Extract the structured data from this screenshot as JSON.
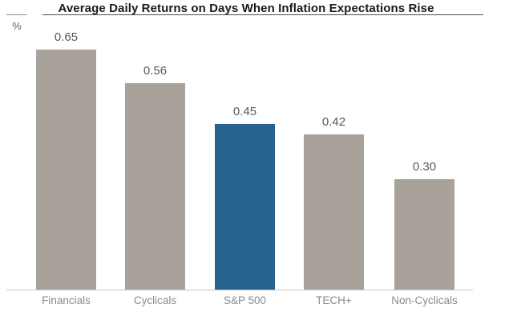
{
  "chart_data": {
    "type": "bar",
    "title": "Average Daily Returns on Days When Inflation Expectations Rise",
    "categories": [
      "Financials",
      "Cyclicals",
      "S&P 500",
      "TECH+",
      "Non-Cyclicals"
    ],
    "values": [
      0.65,
      0.56,
      0.45,
      0.42,
      0.3
    ],
    "value_labels": [
      "0.65",
      "0.56",
      "0.45",
      "0.42",
      "0.30"
    ],
    "xlabel": "",
    "ylabel": "%",
    "ylim": [
      0,
      0.72
    ],
    "grid": false,
    "legend": "none",
    "highlight_category": "S&P 500",
    "bar_colors": [
      "#a8a29b",
      "#a8a29b",
      "#27618e",
      "#a8a29b",
      "#a8a29b"
    ]
  },
  "colors": {
    "bar_gray": "#a8a29b",
    "bar_blue": "#27618e",
    "axis_line": "#c8c8c8",
    "title_text": "#1a1a1a",
    "value_text": "#595959",
    "category_text": "#8a8a8a"
  },
  "unit_label": "%"
}
